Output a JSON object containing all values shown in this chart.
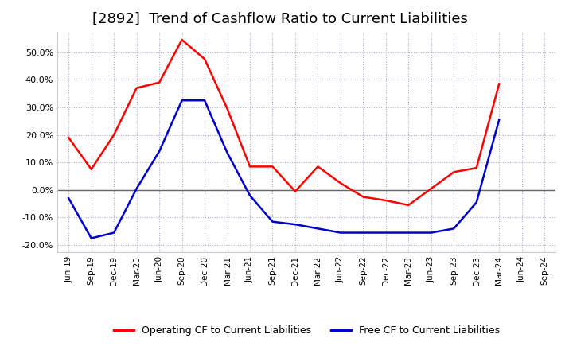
{
  "title": "[2892]  Trend of Cashflow Ratio to Current Liabilities",
  "title_fontsize": 13,
  "title_fontweight": "normal",
  "background_color": "#ffffff",
  "plot_bg_color": "#ffffff",
  "grid_color": "#aaaacc",
  "grid_style": ":",
  "ylim": [
    -0.225,
    0.575
  ],
  "yticks": [
    -0.2,
    -0.1,
    0.0,
    0.1,
    0.2,
    0.3,
    0.4,
    0.5
  ],
  "x_labels": [
    "Jun-19",
    "Sep-19",
    "Dec-19",
    "Mar-20",
    "Jun-20",
    "Sep-20",
    "Dec-20",
    "Mar-21",
    "Jun-21",
    "Sep-21",
    "Dec-21",
    "Mar-22",
    "Jun-22",
    "Sep-22",
    "Dec-22",
    "Mar-23",
    "Jun-23",
    "Sep-23",
    "Dec-23",
    "Mar-24",
    "Jun-24",
    "Sep-24"
  ],
  "operating_cf": [
    0.19,
    0.075,
    0.2,
    0.37,
    0.39,
    0.545,
    0.475,
    0.295,
    0.085,
    0.085,
    -0.005,
    0.085,
    0.025,
    -0.025,
    -0.038,
    -0.055,
    0.005,
    0.065,
    0.08,
    0.385,
    null,
    null
  ],
  "free_cf": [
    -0.03,
    -0.175,
    -0.155,
    0.005,
    0.14,
    0.325,
    0.325,
    0.135,
    -0.02,
    -0.115,
    -0.125,
    -0.14,
    -0.155,
    -0.155,
    -0.155,
    -0.155,
    -0.155,
    -0.14,
    -0.045,
    0.255,
    null,
    null
  ],
  "operating_color": "#ff0000",
  "free_color": "#0000cc",
  "line_width": 1.8,
  "legend_labels": [
    "Operating CF to Current Liabilities",
    "Free CF to Current Liabilities"
  ]
}
